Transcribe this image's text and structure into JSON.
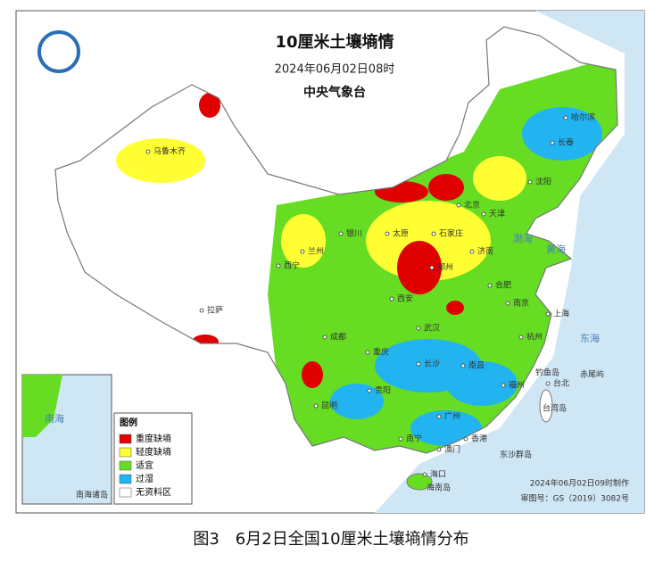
{
  "header": {
    "title": "10厘米土壤墒情",
    "datetime": "2024年06月02日08时",
    "agency": "中央气象台"
  },
  "legend": {
    "title": "图例",
    "items": [
      {
        "label": "重度缺墒",
        "color": "#e00000"
      },
      {
        "label": "轻度缺墒",
        "color": "#ffff33"
      },
      {
        "label": "适宜",
        "color": "#66dd22"
      },
      {
        "label": "过湿",
        "color": "#22b4f0"
      },
      {
        "label": "无资料区",
        "color": "#ffffff"
      }
    ]
  },
  "cities": [
    "哈尔滨",
    "长春",
    "沈阳",
    "北京",
    "天津",
    "石家庄",
    "太原",
    "济南",
    "郑州",
    "银川",
    "兰州",
    "西宁",
    "西安",
    "乌鲁木齐",
    "拉萨",
    "成都",
    "重庆",
    "武汉",
    "合肥",
    "南京",
    "上海",
    "杭州",
    "长沙",
    "南昌",
    "贵阳",
    "昆明",
    "福州",
    "台北",
    "广州",
    "南宁",
    "香港",
    "澳门",
    "海口",
    "钓鱼岛",
    "赤尾屿",
    "台湾岛",
    "东沙群岛",
    "海南岛",
    "南海诸岛"
  ],
  "seas": [
    "渤海",
    "黄海",
    "东海",
    "南海"
  ],
  "footer": {
    "made": "2024年06月02日09时制作",
    "review": "审图号：GS（2019）3082号"
  },
  "caption": "图3　6月2日全国10厘米土壤墒情分布"
}
